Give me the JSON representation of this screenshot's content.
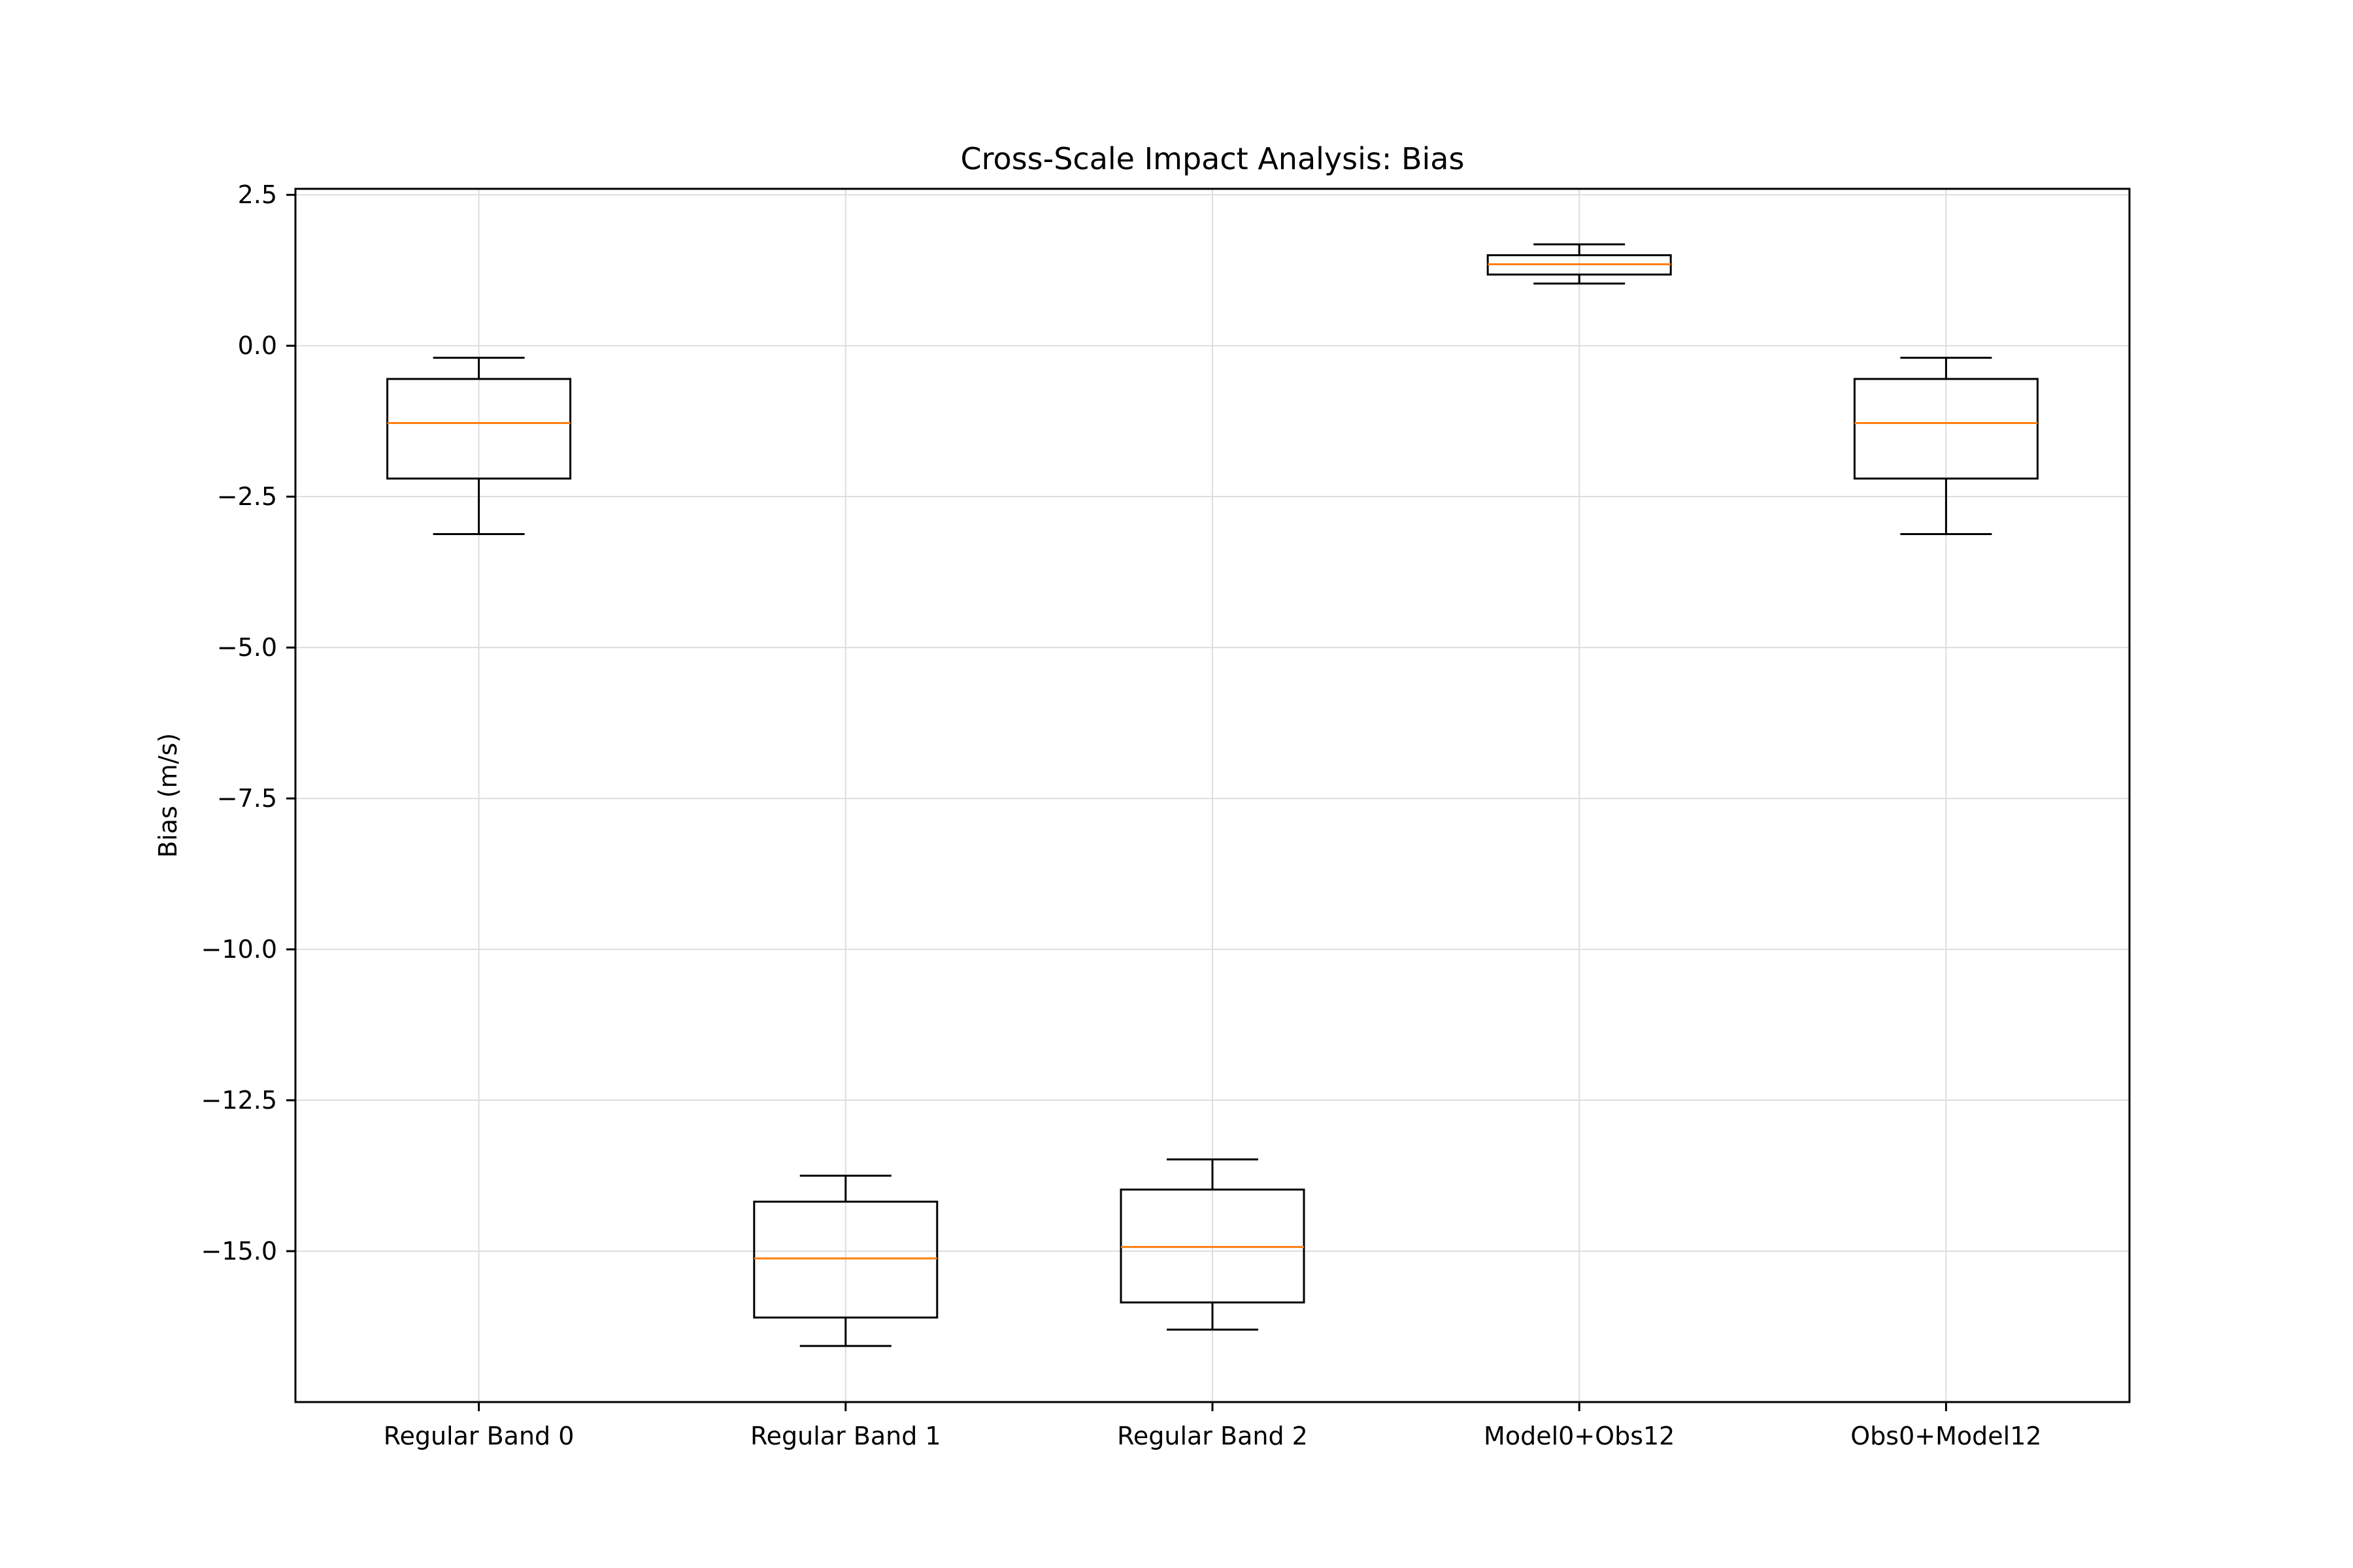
{
  "chart_data": {
    "type": "boxplot",
    "title": "Cross-Scale Impact Analysis: Bias",
    "xlabel": "",
    "ylabel": "Bias (m/s)",
    "ylim": [
      -17.5,
      2.6
    ],
    "yticks": [
      2.5,
      0.0,
      -2.5,
      -5.0,
      -7.5,
      -10.0,
      -12.5,
      -15.0
    ],
    "ytick_labels": [
      "2.5",
      "0.0",
      "−2.5",
      "−5.0",
      "−7.5",
      "−10.0",
      "−12.5",
      "−15.0"
    ],
    "grid": true,
    "categories": [
      "Regular Band 0",
      "Regular Band 1",
      "Regular Band 2",
      "Model0+Obs12",
      "Obs0+Model12"
    ],
    "boxes": [
      {
        "whisker_low": -3.12,
        "q1": -2.2,
        "median": -1.28,
        "q3": -0.55,
        "whisker_high": -0.2
      },
      {
        "whisker_low": -16.57,
        "q1": -16.1,
        "median": -15.12,
        "q3": -14.18,
        "whisker_high": -13.75
      },
      {
        "whisker_low": -16.3,
        "q1": -15.85,
        "median": -14.93,
        "q3": -13.98,
        "whisker_high": -13.48
      },
      {
        "whisker_low": 1.03,
        "q1": 1.18,
        "median": 1.35,
        "q3": 1.5,
        "whisker_high": 1.68
      },
      {
        "whisker_low": -3.12,
        "q1": -2.2,
        "median": -1.28,
        "q3": -0.55,
        "whisker_high": -0.2
      }
    ],
    "colors": {
      "box": "#000000",
      "median": "#ff7f0e",
      "grid": "#dddddd"
    }
  }
}
